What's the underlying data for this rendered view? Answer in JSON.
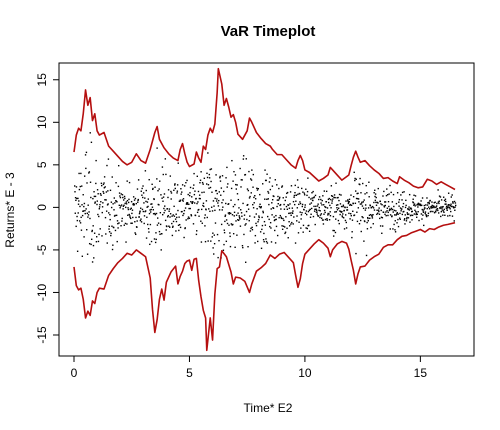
{
  "chart_data": {
    "type": "line",
    "title": "VaR Timeplot",
    "xlabel": "Time* E2",
    "ylabel": "Returns* E - 3",
    "xlim": [
      0,
      16.5
    ],
    "ylim": [
      -17,
      16.5
    ],
    "x_ticks": [
      0,
      5,
      10,
      15
    ],
    "y_ticks": [
      -15,
      -10,
      -5,
      0,
      5,
      10,
      15
    ],
    "x_tick_labels": [
      "0",
      "5",
      "10",
      "15"
    ],
    "y_tick_labels": [
      "-15",
      "-10",
      "-5",
      "0",
      "5",
      "10",
      "15"
    ],
    "grid": false,
    "legend": "none",
    "series": [
      {
        "kind": "line",
        "color": "#b50f0f",
        "points": [
          [
            0.0,
            6.5
          ],
          [
            0.1,
            8.5
          ],
          [
            0.2,
            9.3
          ],
          [
            0.3,
            9.0
          ],
          [
            0.4,
            11.0
          ],
          [
            0.5,
            13.8
          ],
          [
            0.6,
            12.0
          ],
          [
            0.7,
            12.9
          ],
          [
            0.8,
            10.2
          ],
          [
            0.9,
            11.0
          ],
          [
            1.0,
            9.0
          ],
          [
            1.1,
            8.5
          ],
          [
            1.3,
            8.8
          ],
          [
            1.5,
            7.2
          ],
          [
            1.7,
            6.6
          ],
          [
            1.9,
            6.0
          ],
          [
            2.1,
            5.4
          ],
          [
            2.3,
            5.0
          ],
          [
            2.5,
            5.3
          ],
          [
            2.7,
            6.3
          ],
          [
            2.9,
            5.5
          ],
          [
            3.1,
            5.2
          ],
          [
            3.3,
            6.8
          ],
          [
            3.5,
            8.8
          ],
          [
            3.6,
            9.5
          ],
          [
            3.7,
            8.0
          ],
          [
            3.9,
            7.0
          ],
          [
            4.1,
            6.3
          ],
          [
            4.3,
            5.8
          ],
          [
            4.5,
            5.5
          ],
          [
            4.6,
            6.8
          ],
          [
            4.7,
            7.5
          ],
          [
            4.8,
            6.3
          ],
          [
            4.9,
            5.3
          ],
          [
            5.0,
            4.8
          ],
          [
            5.2,
            5.1
          ],
          [
            5.3,
            6.5
          ],
          [
            5.4,
            5.8
          ],
          [
            5.5,
            5.3
          ],
          [
            5.6,
            7.2
          ],
          [
            5.7,
            6.8
          ],
          [
            5.8,
            8.5
          ],
          [
            5.9,
            9.3
          ],
          [
            6.0,
            8.8
          ],
          [
            6.1,
            9.8
          ],
          [
            6.2,
            13.5
          ],
          [
            6.25,
            16.3
          ],
          [
            6.4,
            14.5
          ],
          [
            6.5,
            12.0
          ],
          [
            6.6,
            12.8
          ],
          [
            6.7,
            11.8
          ],
          [
            6.8,
            10.6
          ],
          [
            6.9,
            10.9
          ],
          [
            7.0,
            10.0
          ],
          [
            7.1,
            8.6
          ],
          [
            7.3,
            8.0
          ],
          [
            7.5,
            9.0
          ],
          [
            7.6,
            10.5
          ],
          [
            7.7,
            10.0
          ],
          [
            7.9,
            8.8
          ],
          [
            8.1,
            8.1
          ],
          [
            8.3,
            7.5
          ],
          [
            8.5,
            7.2
          ],
          [
            8.6,
            6.8
          ],
          [
            8.8,
            6.2
          ],
          [
            9.0,
            6.2
          ],
          [
            9.2,
            5.6
          ],
          [
            9.4,
            5.0
          ],
          [
            9.6,
            4.6
          ],
          [
            9.7,
            5.5
          ],
          [
            9.8,
            6.1
          ],
          [
            9.9,
            5.5
          ],
          [
            10.0,
            4.4
          ],
          [
            10.2,
            4.1
          ],
          [
            10.4,
            3.6
          ],
          [
            10.6,
            3.1
          ],
          [
            10.8,
            3.4
          ],
          [
            11.0,
            3.8
          ],
          [
            11.1,
            4.7
          ],
          [
            11.2,
            4.4
          ],
          [
            11.4,
            3.8
          ],
          [
            11.6,
            3.2
          ],
          [
            11.8,
            3.6
          ],
          [
            11.9,
            3.8
          ],
          [
            12.0,
            4.9
          ],
          [
            12.1,
            5.9
          ],
          [
            12.2,
            6.6
          ],
          [
            12.3,
            5.9
          ],
          [
            12.4,
            5.3
          ],
          [
            12.6,
            5.5
          ],
          [
            12.8,
            4.9
          ],
          [
            13.0,
            4.4
          ],
          [
            13.2,
            4.0
          ],
          [
            13.4,
            3.4
          ],
          [
            13.6,
            3.5
          ],
          [
            13.8,
            3.1
          ],
          [
            14.0,
            2.8
          ],
          [
            14.1,
            3.6
          ],
          [
            14.3,
            3.2
          ],
          [
            14.5,
            2.9
          ],
          [
            14.7,
            2.5
          ],
          [
            14.9,
            2.3
          ],
          [
            15.1,
            2.4
          ],
          [
            15.3,
            3.3
          ],
          [
            15.5,
            3.1
          ],
          [
            15.7,
            2.7
          ],
          [
            15.9,
            3.0
          ],
          [
            16.1,
            2.7
          ],
          [
            16.3,
            2.4
          ],
          [
            16.5,
            2.1
          ]
        ]
      },
      {
        "kind": "line",
        "color": "#b50f0f",
        "points": [
          [
            0.0,
            -7.0
          ],
          [
            0.1,
            -9.2
          ],
          [
            0.2,
            -9.7
          ],
          [
            0.3,
            -9.5
          ],
          [
            0.4,
            -10.8
          ],
          [
            0.5,
            -13.0
          ],
          [
            0.6,
            -12.2
          ],
          [
            0.7,
            -12.7
          ],
          [
            0.8,
            -11.0
          ],
          [
            0.9,
            -11.3
          ],
          [
            1.0,
            -10.0
          ],
          [
            1.1,
            -9.5
          ],
          [
            1.3,
            -9.6
          ],
          [
            1.5,
            -8.0
          ],
          [
            1.7,
            -7.2
          ],
          [
            1.9,
            -6.5
          ],
          [
            2.1,
            -6.0
          ],
          [
            2.3,
            -5.4
          ],
          [
            2.5,
            -5.6
          ],
          [
            2.7,
            -5.0
          ],
          [
            2.9,
            -5.4
          ],
          [
            3.1,
            -5.8
          ],
          [
            3.3,
            -8.3
          ],
          [
            3.4,
            -12.0
          ],
          [
            3.5,
            -14.7
          ],
          [
            3.6,
            -13.2
          ],
          [
            3.7,
            -10.8
          ],
          [
            3.8,
            -9.6
          ],
          [
            3.9,
            -10.9
          ],
          [
            4.0,
            -8.8
          ],
          [
            4.2,
            -7.6
          ],
          [
            4.4,
            -6.9
          ],
          [
            4.5,
            -9.0
          ],
          [
            4.6,
            -8.1
          ],
          [
            4.7,
            -7.5
          ],
          [
            4.8,
            -6.6
          ],
          [
            4.9,
            -6.3
          ],
          [
            5.0,
            -6.2
          ],
          [
            5.1,
            -7.4
          ],
          [
            5.2,
            -6.1
          ],
          [
            5.3,
            -6.0
          ],
          [
            5.4,
            -8.6
          ],
          [
            5.5,
            -10.5
          ],
          [
            5.6,
            -12.1
          ],
          [
            5.7,
            -13.0
          ],
          [
            5.75,
            -16.8
          ],
          [
            5.9,
            -13.0
          ],
          [
            6.0,
            -15.6
          ],
          [
            6.1,
            -10.2
          ],
          [
            6.2,
            -7.2
          ],
          [
            6.3,
            -7.0
          ],
          [
            6.4,
            -5.1
          ],
          [
            6.6,
            -5.8
          ],
          [
            6.8,
            -7.6
          ],
          [
            6.9,
            -9.0
          ],
          [
            7.0,
            -8.2
          ],
          [
            7.2,
            -8.3
          ],
          [
            7.4,
            -8.7
          ],
          [
            7.6,
            -10.0
          ],
          [
            7.7,
            -9.0
          ],
          [
            7.9,
            -7.5
          ],
          [
            8.1,
            -7.1
          ],
          [
            8.3,
            -6.6
          ],
          [
            8.5,
            -5.6
          ],
          [
            8.7,
            -6.0
          ],
          [
            8.9,
            -5.5
          ],
          [
            9.1,
            -5.3
          ],
          [
            9.3,
            -5.9
          ],
          [
            9.5,
            -6.5
          ],
          [
            9.6,
            -8.0
          ],
          [
            9.7,
            -9.4
          ],
          [
            9.8,
            -8.4
          ],
          [
            9.9,
            -6.6
          ],
          [
            10.0,
            -5.5
          ],
          [
            10.2,
            -4.9
          ],
          [
            10.4,
            -4.3
          ],
          [
            10.6,
            -3.8
          ],
          [
            10.8,
            -4.2
          ],
          [
            11.0,
            -4.8
          ],
          [
            11.1,
            -5.8
          ],
          [
            11.2,
            -5.0
          ],
          [
            11.4,
            -4.3
          ],
          [
            11.6,
            -4.0
          ],
          [
            11.8,
            -4.2
          ],
          [
            11.9,
            -4.9
          ],
          [
            12.0,
            -6.2
          ],
          [
            12.1,
            -7.4
          ],
          [
            12.2,
            -9.0
          ],
          [
            12.3,
            -7.8
          ],
          [
            12.4,
            -7.0
          ],
          [
            12.6,
            -6.9
          ],
          [
            12.8,
            -6.2
          ],
          [
            13.0,
            -5.8
          ],
          [
            13.2,
            -5.5
          ],
          [
            13.4,
            -4.7
          ],
          [
            13.6,
            -4.4
          ],
          [
            13.8,
            -4.4
          ],
          [
            14.0,
            -3.8
          ],
          [
            14.2,
            -3.4
          ],
          [
            14.4,
            -3.3
          ],
          [
            14.6,
            -3.0
          ],
          [
            14.8,
            -2.8
          ],
          [
            15.0,
            -2.6
          ],
          [
            15.2,
            -2.9
          ],
          [
            15.4,
            -2.5
          ],
          [
            15.6,
            -2.6
          ],
          [
            15.8,
            -2.3
          ],
          [
            16.0,
            -2.1
          ],
          [
            16.2,
            -2.0
          ],
          [
            16.5,
            -1.8
          ]
        ]
      }
    ],
    "scatter": {
      "color": "#000000",
      "count": 1300,
      "x_range": [
        0,
        16.5
      ],
      "description_of_spread": "returns scatter between the VaR bands"
    }
  }
}
